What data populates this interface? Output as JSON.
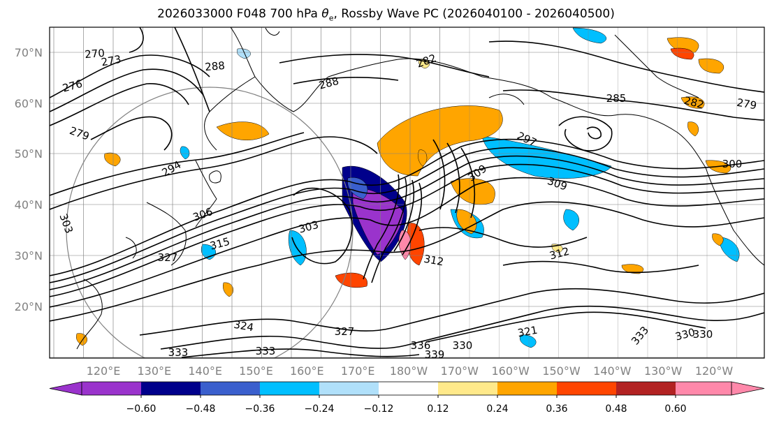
{
  "figure": {
    "title_main": "2026033000 F048 700 hPa ",
    "title_var": "θ",
    "title_sub": "e",
    "title_tail": ", Rossby Wave PC (2026040100 - 2026040500)"
  },
  "map": {
    "lat_labels": [
      "70°N",
      "60°N",
      "50°N",
      "40°N",
      "30°N",
      "20°N"
    ],
    "lon_labels": [
      "120°E",
      "130°E",
      "140°E",
      "150°E",
      "160°E",
      "170°E",
      "180°W",
      "170°W",
      "160°W",
      "150°W",
      "140°W",
      "130°W",
      "120°W"
    ],
    "contour_labels": [
      "270",
      "273",
      "276",
      "288",
      "288",
      "282",
      "285",
      "282",
      "279",
      "279",
      "294",
      "297",
      "300",
      "303",
      "303",
      "306",
      "309",
      "309",
      "312",
      "312",
      "315",
      "327",
      "324",
      "327",
      "321",
      "330",
      "330",
      "333",
      "333",
      "336",
      "339",
      "330",
      "333"
    ]
  },
  "colorbar": {
    "ticks": [
      "−0.60",
      "−0.48",
      "−0.36",
      "−0.24",
      "−0.12",
      "0.12",
      "0.24",
      "0.36",
      "0.48",
      "0.60"
    ],
    "colors": [
      "#9a33cc",
      "#00008b",
      "#3a5fcd",
      "#00bfff",
      "#b0e0fa",
      "#ffffff",
      "#ffe98a",
      "#ffa500",
      "#ff4500",
      "#b22222",
      "#ff88aa"
    ]
  }
}
